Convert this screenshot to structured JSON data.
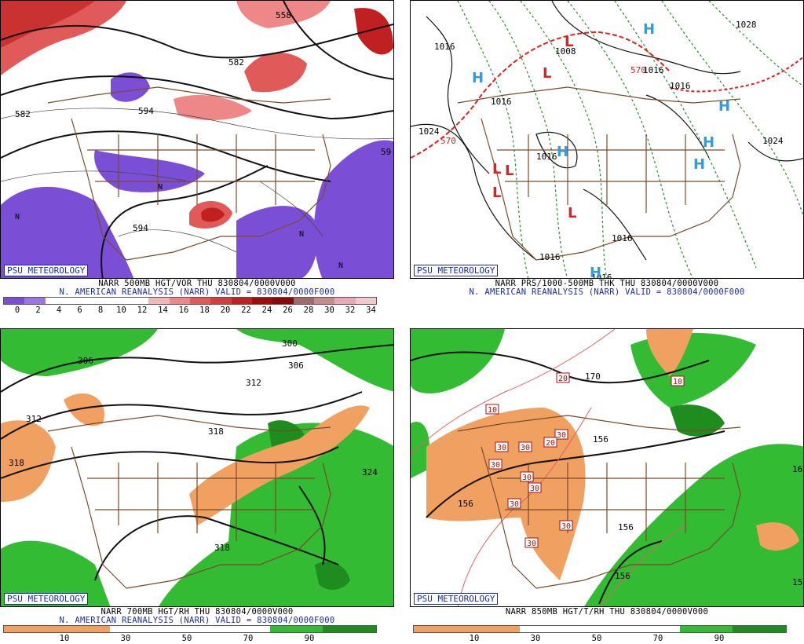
{
  "badge": "PSU METEOROLOGY",
  "colors": {
    "vort": [
      "#7a4fd6",
      "#9b78e0",
      "#ffffff",
      "#ffffff",
      "#ffffff",
      "#ffffff",
      "#ffffff",
      "#f2b8b8",
      "#ee8888",
      "#e05a5a",
      "#d43d3d",
      "#c02020",
      "#a00c0c",
      "#8a0808",
      "#a06a6a",
      "#c48c8c",
      "#e8a8b4",
      "#f5c8d0"
    ],
    "rh": [
      "#f0a060",
      "#f0a060",
      "#ffffff",
      "#ffffff",
      "#ffffff",
      "#33bb33",
      "#1e8c1e"
    ],
    "rh850": [
      "#f0a060",
      "#f0a060",
      "#ffffff",
      "#ffffff",
      "#ffffff",
      "#33bb33",
      "#1e8c1e"
    ],
    "border": "#7a4a2a",
    "blue": "#1a2bb0",
    "high": "#29a0e6",
    "low": "#e02020"
  },
  "panels": [
    {
      "title": "NARR 500MB HGT/VOR THU 830804/0000V000",
      "subtitle": "N. AMERICAN REANALYSIS (NARR) VALID = 830804/0000F000",
      "colorbar_labels": [
        "0",
        "2",
        "4",
        "6",
        "8",
        "10",
        "12",
        "14",
        "16",
        "18",
        "20",
        "22",
        "24",
        "26",
        "28",
        "30",
        "32",
        "34"
      ],
      "contour_labels": [
        "558",
        "582",
        "582",
        "594",
        "594",
        "59",
        "N"
      ]
    },
    {
      "title": "NARR PRS/1000-500MB THK THU 830804/0000V000",
      "subtitle": "N. AMERICAN REANALYSIS (NARR) VALID = 830804/0000F000",
      "contour_labels": [
        "1016",
        "1008",
        "1016",
        "1016",
        "1024",
        "570",
        "1016",
        "1016",
        "1024",
        "1016",
        "1016",
        "1028",
        "570",
        "1016"
      ],
      "highs": [
        "H",
        "H",
        "H",
        "H",
        "H",
        "H",
        "H"
      ],
      "lows": [
        "L",
        "L",
        "L",
        "L",
        "L",
        "L"
      ]
    },
    {
      "title": "NARR 700MB HGT/RH THU 830804/0000V000",
      "subtitle": "N. AMERICAN REANALYSIS (NARR) VALID = 830804/0000F000",
      "colorbar_labels": [
        "10",
        "30",
        "50",
        "70",
        "90"
      ],
      "contour_labels": [
        "300",
        "306",
        "306",
        "312",
        "312",
        "318",
        "318",
        "318",
        "324"
      ]
    },
    {
      "title": "NARR 850MB HGT/T/RH THU 830804/0000V000",
      "subtitle": "",
      "colorbar_labels": [
        "10",
        "30",
        "50",
        "70",
        "90"
      ],
      "contour_labels": [
        "170",
        "20",
        "10",
        "10",
        "156",
        "156",
        "156",
        "156",
        "30",
        "30",
        "30",
        "30",
        "30",
        "30",
        "30",
        "30",
        "30",
        "20",
        "16",
        "15"
      ]
    }
  ]
}
